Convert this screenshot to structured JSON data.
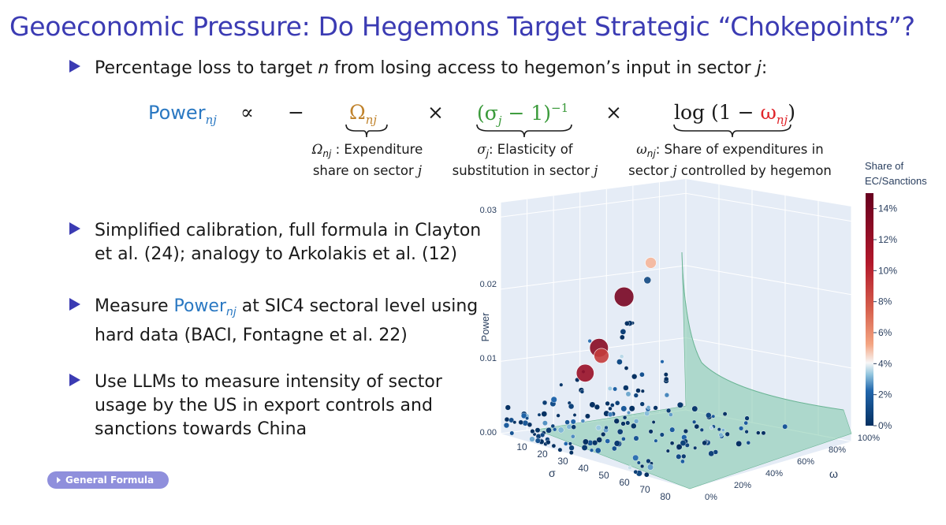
{
  "slide": {
    "title": "Geoeconomic Pressure: Do Hegemons Target Strategic “Chokepoints”?",
    "bullet1_text": "Percentage loss to target ",
    "bullet1_n": "n",
    "bullet1_mid": " from losing access to hegemon’s input in sector ",
    "bullet1_j": "j",
    "bullet1_end": ":",
    "bullets": [
      {
        "line1": "Simplified calibration, full formula in Clayton",
        "line2": "et al. (24); analogy to Arkolakis et al. (12)"
      },
      {
        "line1_pre": "Measure ",
        "line1_power": "Power",
        "line1_sub": "nj",
        "line1_post": " at SIC4 sectoral level using",
        "line2": "hard data (BACI, Fontagne et al. 22)"
      },
      {
        "line1": "Use LLMs to measure intensity of sector",
        "line2": "usage by the US in export controls and",
        "line3": "sanctions towards China"
      }
    ],
    "general_formula_button": "General Formula"
  },
  "formula": {
    "power": "Power",
    "power_sub": "nj",
    "propto": "∝",
    "minus": "−",
    "omega": "Ω",
    "omega_sub": "nj",
    "times1": "×",
    "sigma_open": "(",
    "sigma": "σ",
    "sigma_sub": "j",
    "sigma_close": " − 1)",
    "sigma_exp": "−1",
    "times2": "×",
    "log_open": "log (1 − ",
    "omega_small": "ω",
    "omega_small_sub": "nj",
    "log_close": ")",
    "captions": {
      "omega_line1_sym": "Ω",
      "omega_line1_sub": "nj",
      "omega_line1": " : Expenditure",
      "omega_line2": "share on sector ",
      "omega_line2_j": "j",
      "sigma_line1_sym": "σ",
      "sigma_line1_sub": "j",
      "sigma_line1": ": Elasticity of",
      "sigma_line2": "substitution in sector ",
      "sigma_line2_j": "j",
      "w_line1_sym": "ω",
      "w_line1_sub": "nj",
      "w_line1": ": Share of expenditures in",
      "w_line2_pre": "sector ",
      "w_line2_j": "j",
      "w_line2_post": " controlled by hegemon"
    }
  },
  "chart_data": {
    "type": "scatter",
    "xlabel": "σ",
    "ylabel": "Power",
    "zlabel": "ω",
    "x_ticks": [
      "10",
      "20",
      "30",
      "40",
      "50",
      "60",
      "70",
      "80"
    ],
    "y_ticks": [
      "0.00",
      "0.01",
      "0.02",
      "0.03"
    ],
    "z_ticks": [
      "0%",
      "20%",
      "40%",
      "60%",
      "80%",
      "100%"
    ],
    "colorbar": {
      "title_line1": "Share of",
      "title_line2": "EC/Sanctions",
      "ticks": [
        "0%",
        "2%",
        "4%",
        "6%",
        "8%",
        "10%",
        "12%",
        "14%"
      ],
      "range": [
        0,
        15
      ]
    },
    "highlighted_points": [
      {
        "sigma": 3,
        "omega": 0.72,
        "power": 0.0157,
        "share": 14
      },
      {
        "sigma": 4,
        "omega": 0.55,
        "power": 0.0097,
        "share": 13
      },
      {
        "sigma": 5,
        "omega": 0.45,
        "power": 0.0068,
        "share": 12
      },
      {
        "sigma": 3,
        "omega": 0.58,
        "power": 0.0085,
        "share": 9
      },
      {
        "sigma": 2,
        "omega": 0.9,
        "power": 0.0195,
        "share": 5
      },
      {
        "sigma": 4,
        "omega": 0.85,
        "power": 0.0175,
        "share": 1
      }
    ]
  }
}
